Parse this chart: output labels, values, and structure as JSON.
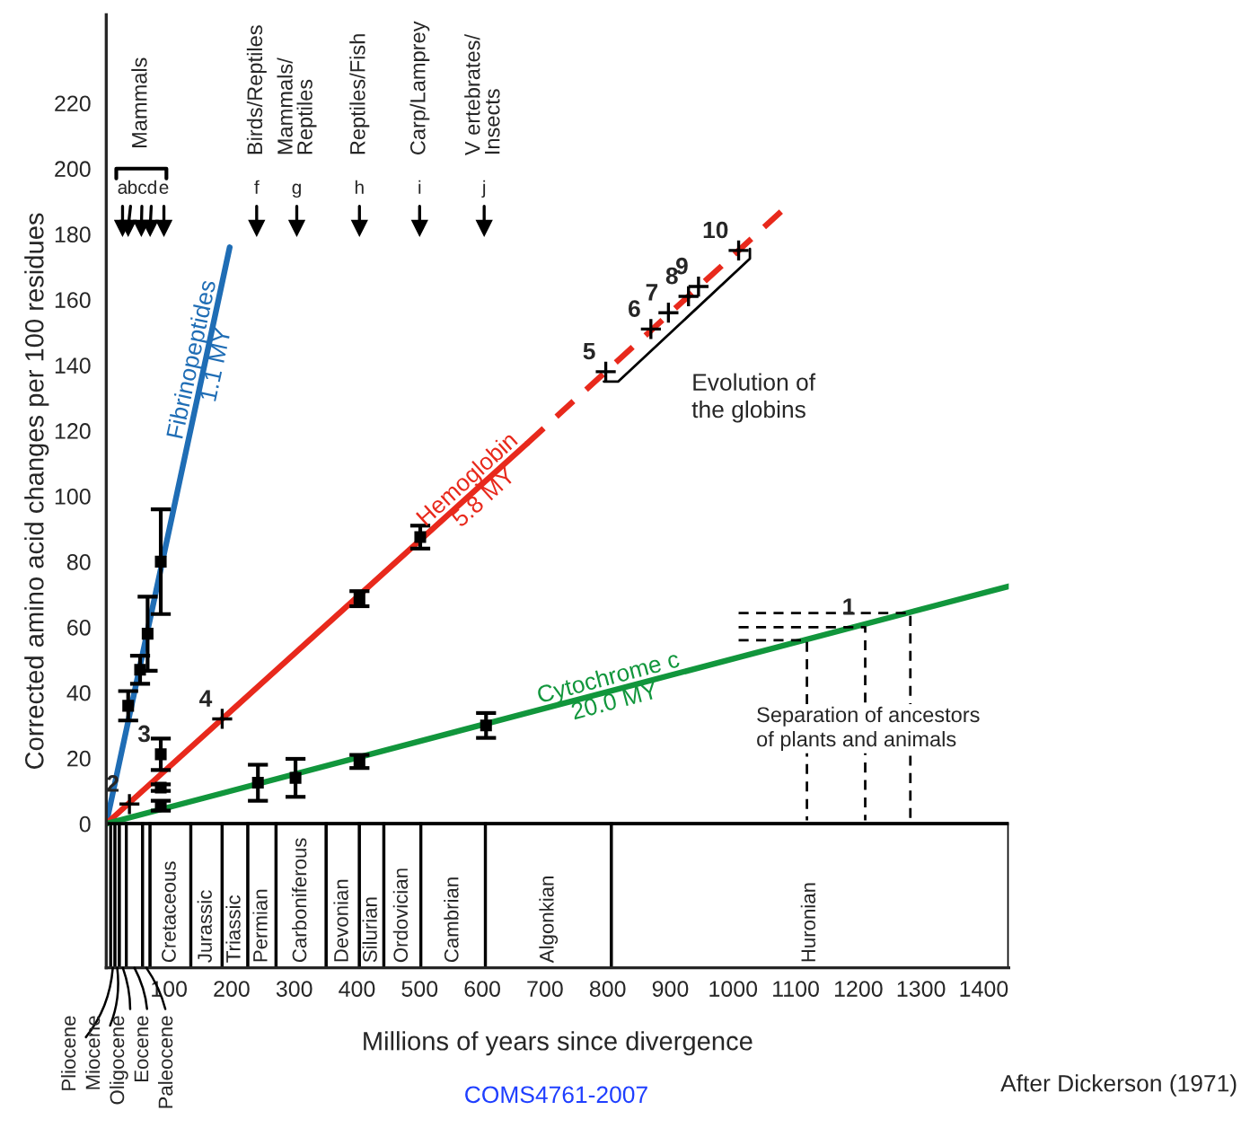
{
  "chart_data": {
    "type": "line",
    "xlabel": "Millions of years since divergence",
    "ylabel": "Corrected amino acid changes per 100 residues",
    "xlim": [
      0,
      1440
    ],
    "ylim": [
      -44,
      247
    ],
    "xticks": [
      100,
      200,
      300,
      400,
      500,
      600,
      700,
      800,
      900,
      1000,
      1100,
      1200,
      1300,
      1400
    ],
    "yticks": [
      0,
      20,
      40,
      60,
      80,
      100,
      120,
      140,
      160,
      180,
      200,
      220
    ],
    "grid": false,
    "series": [
      {
        "name": "Fibrinopeptides\n1.1 MY",
        "color": "#1f6db5",
        "x": [
          0,
          197
        ],
        "values": [
          0,
          176
        ]
      },
      {
        "name": "Hemoglobin\n5.8 MY",
        "color": "#e8291c",
        "x": [
          0,
          671
        ],
        "values": [
          0,
          116
        ]
      },
      {
        "color": "#e8291c",
        "line_style": "dashed",
        "x": [
          671,
          1089
        ],
        "values": [
          116,
          189
        ]
      },
      {
        "name": "Cytochrome c\n20.0 MY",
        "color": "#11963c",
        "x": [
          0,
          1440
        ],
        "values": [
          0,
          72.5
        ]
      },
      {
        "type": "scatter",
        "marker": "square",
        "color": "#000000",
        "x": [
          35,
          54,
          66,
          87,
          87,
          87,
          404,
          501,
          87,
          242,
          302,
          404,
          606
        ],
        "values": [
          36,
          47,
          58,
          80,
          21.2,
          11,
          68.7,
          87.5,
          5.5,
          12.5,
          14,
          19,
          30
        ],
        "errors": [
          4.5,
          4.3,
          11.3,
          16,
          4.8,
          1,
          2.3,
          3.5,
          1.5,
          5.5,
          5.8,
          2,
          3.8
        ]
      },
      {
        "type": "scatter",
        "marker": "cross",
        "color": "#000000",
        "x": [
          37,
          185,
          797,
          869,
          897,
          929,
          945,
          1009
        ],
        "values": [
          6,
          32,
          138,
          151,
          156,
          161,
          164,
          175
        ]
      },
      {
        "type": "scatter",
        "marker": "triangle",
        "color": "#000000",
        "x": [
          26,
          35,
          56,
          70,
          92,
          240,
          304,
          404,
          500,
          603
        ],
        "values": [
          182,
          182,
          182,
          182,
          182,
          182,
          182,
          182,
          182,
          182
        ],
        "value_labels": [
          "a",
          "b",
          "c",
          "d",
          "e",
          "f",
          "g",
          "h",
          "i",
          "j"
        ]
      },
      {
        "line_style": "dashed",
        "color": "#000000",
        "x": [
          1009,
          1118,
          1118
        ],
        "values": [
          56,
          56,
          1
        ]
      },
      {
        "line_style": "dashed",
        "color": "#000000",
        "x": [
          1009,
          1211,
          1211
        ],
        "values": [
          60,
          60,
          1
        ]
      },
      {
        "line_style": "dashed",
        "color": "#000000",
        "x": [
          1009,
          1283,
          1283
        ],
        "values": [
          64.3,
          64.3,
          1
        ]
      }
    ],
    "ref_lines": [
      {
        "axis": "y",
        "value": 0,
        "color": "#000000"
      }
    ],
    "bands": [
      {
        "axis": "x",
        "from": 7,
        "to": 14,
        "label": "Pliocene",
        "color": "#ffffff"
      },
      {
        "axis": "x",
        "from": 14,
        "to": 21,
        "label": "Miocene",
        "color": "#ffffff"
      },
      {
        "axis": "x",
        "from": 21,
        "to": 32,
        "label": "Oligocene",
        "color": "#ffffff"
      },
      {
        "axis": "x",
        "from": 32,
        "to": 58,
        "label": "Eocene",
        "color": "#ffffff"
      },
      {
        "axis": "x",
        "from": 58,
        "to": 70,
        "label": "Paleocene",
        "color": "#ffffff"
      },
      {
        "axis": "x",
        "from": 70,
        "to": 135,
        "label": "Cretaceous",
        "color": "#ffffff"
      },
      {
        "axis": "x",
        "from": 135,
        "to": 185,
        "label": "Jurassic",
        "color": "#ffffff"
      },
      {
        "axis": "x",
        "from": 185,
        "to": 226,
        "label": "Triassic",
        "color": "#ffffff"
      },
      {
        "axis": "x",
        "from": 226,
        "to": 271,
        "label": "Permian",
        "color": "#ffffff"
      },
      {
        "axis": "x",
        "from": 271,
        "to": 351,
        "label": "Carboniferous",
        "color": "#ffffff"
      },
      {
        "axis": "x",
        "from": 351,
        "to": 404,
        "label": "Devonian",
        "color": "#ffffff"
      },
      {
        "axis": "x",
        "from": 404,
        "to": 443,
        "label": "Silurian",
        "color": "#ffffff"
      },
      {
        "axis": "x",
        "from": 443,
        "to": 502,
        "label": "Ordovician",
        "color": "#ffffff"
      },
      {
        "axis": "x",
        "from": 502,
        "to": 605,
        "label": "Cambrian",
        "color": "#ffffff"
      },
      {
        "axis": "x",
        "from": 605,
        "to": 806,
        "label": "Algonkian",
        "color": "#ffffff"
      },
      {
        "axis": "x",
        "from": 806,
        "to": 1440,
        "label": "Huronian",
        "color": "#ffffff"
      }
    ],
    "annotations": [
      "Mammals",
      "Birds/Reptiles",
      "Mammals/\nReptiles",
      "Reptiles/Fish",
      "Carp/Lamprey",
      "V ertebrates/\nInsects",
      "Evolution of\nthe globins",
      "Separation of ancestors\nof plants and animals",
      "COMS4761-2007",
      "After Dickerson (1971)",
      {
        "text": "1",
        "x": 1211,
        "y": 60
      },
      {
        "text": "2",
        "x": 37,
        "y": 6
      },
      {
        "text": "3",
        "x": 87,
        "y": 21.2
      },
      {
        "text": "4",
        "x": 185,
        "y": 32
      },
      {
        "text": "5",
        "x": 797,
        "y": 138
      },
      {
        "text": "6",
        "x": 869,
        "y": 151
      },
      {
        "text": "7",
        "x": 897,
        "y": 156
      },
      {
        "text": "8",
        "x": 929,
        "y": 161
      },
      {
        "text": "9",
        "x": 945,
        "y": 164
      },
      {
        "text": "10",
        "x": 1009,
        "y": 175
      }
    ]
  }
}
